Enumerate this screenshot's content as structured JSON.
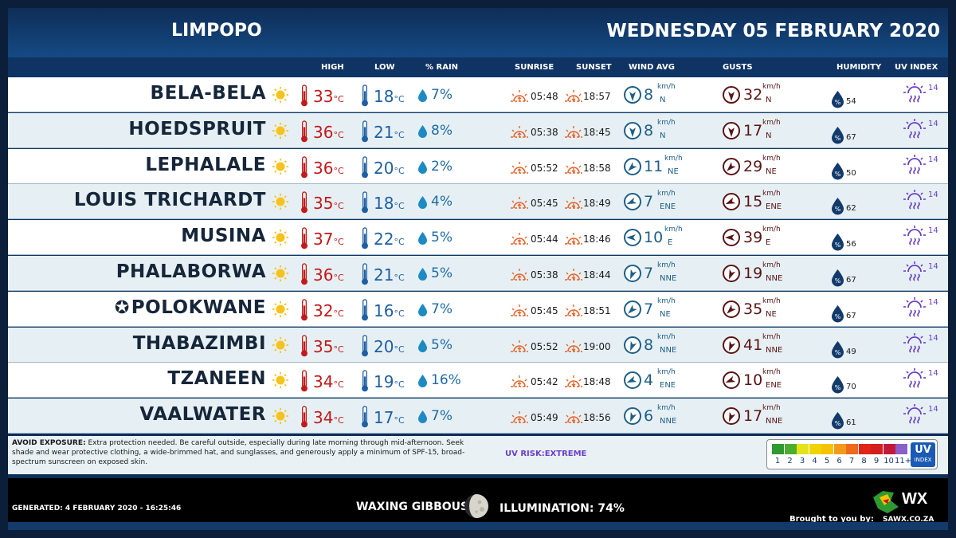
{
  "header": {
    "region": "LIMPOPO",
    "date": "WEDNESDAY 05 FEBRUARY 2020"
  },
  "columns": {
    "high": "HIGH",
    "low": "LOW",
    "rain": "% RAIN",
    "sunrise": "SUNRISE",
    "sunset": "SUNSET",
    "wind": "WIND AVG",
    "gusts": "GUSTS",
    "humidity": "HUMIDITY",
    "uv": "UV INDEX"
  },
  "units": {
    "temp": "°C",
    "speed": "km/h"
  },
  "colors": {
    "high": "#c21a1a",
    "low": "#1e5fa3",
    "rain": "#1e6aa6",
    "sun_orange": "#e8622a",
    "uv_purple": "#6a3fc7"
  },
  "rows": [
    {
      "city": "BELA-BELA",
      "capital": false,
      "high": "33",
      "low": "18",
      "rain": "7%",
      "sunrise": "05:48",
      "sunset": "18:57",
      "wind_speed": "8",
      "wind_dir": "N",
      "gust_speed": "32",
      "gust_dir": "N",
      "humidity": "54",
      "uv": "14",
      "wind_angle": 0,
      "gust_angle": 0
    },
    {
      "city": "HOEDSPRUIT",
      "capital": false,
      "high": "36",
      "low": "21",
      "rain": "8%",
      "sunrise": "05:38",
      "sunset": "18:45",
      "wind_speed": "8",
      "wind_dir": "N",
      "gust_speed": "17",
      "gust_dir": "N",
      "humidity": "67",
      "uv": "14",
      "wind_angle": 0,
      "gust_angle": 0
    },
    {
      "city": "LEPHALALE",
      "capital": false,
      "high": "36",
      "low": "20",
      "rain": "2%",
      "sunrise": "05:52",
      "sunset": "18:58",
      "wind_speed": "11",
      "wind_dir": "NE",
      "gust_speed": "29",
      "gust_dir": "NE",
      "humidity": "50",
      "uv": "14",
      "wind_angle": 45,
      "gust_angle": 45
    },
    {
      "city": "LOUIS TRICHARDT",
      "capital": false,
      "high": "35",
      "low": "18",
      "rain": "4%",
      "sunrise": "05:45",
      "sunset": "18:49",
      "wind_speed": "7",
      "wind_dir": "ENE",
      "gust_speed": "15",
      "gust_dir": "ENE",
      "humidity": "62",
      "uv": "14",
      "wind_angle": 67,
      "gust_angle": 67
    },
    {
      "city": "MUSINA",
      "capital": false,
      "high": "37",
      "low": "22",
      "rain": "5%",
      "sunrise": "05:44",
      "sunset": "18:46",
      "wind_speed": "10",
      "wind_dir": "E",
      "gust_speed": "39",
      "gust_dir": "E",
      "humidity": "56",
      "uv": "14",
      "wind_angle": 90,
      "gust_angle": 90
    },
    {
      "city": "PHALABORWA",
      "capital": false,
      "high": "36",
      "low": "21",
      "rain": "5%",
      "sunrise": "05:38",
      "sunset": "18:44",
      "wind_speed": "7",
      "wind_dir": "NNE",
      "gust_speed": "19",
      "gust_dir": "NNE",
      "humidity": "67",
      "uv": "14",
      "wind_angle": 22,
      "gust_angle": 22
    },
    {
      "city": "POLOKWANE",
      "capital": true,
      "high": "32",
      "low": "16",
      "rain": "7%",
      "sunrise": "05:45",
      "sunset": "18:51",
      "wind_speed": "7",
      "wind_dir": "NE",
      "gust_speed": "35",
      "gust_dir": "NE",
      "humidity": "67",
      "uv": "14",
      "wind_angle": 45,
      "gust_angle": 45
    },
    {
      "city": "THABAZIMBI",
      "capital": false,
      "high": "35",
      "low": "20",
      "rain": "5%",
      "sunrise": "05:52",
      "sunset": "19:00",
      "wind_speed": "8",
      "wind_dir": "NNE",
      "gust_speed": "41",
      "gust_dir": "NNE",
      "humidity": "49",
      "uv": "14",
      "wind_angle": 22,
      "gust_angle": 22
    },
    {
      "city": "TZANEEN",
      "capital": false,
      "high": "34",
      "low": "19",
      "rain": "16%",
      "sunrise": "05:42",
      "sunset": "18:48",
      "wind_speed": "4",
      "wind_dir": "ENE",
      "gust_speed": "10",
      "gust_dir": "ENE",
      "humidity": "70",
      "uv": "14",
      "wind_angle": 67,
      "gust_angle": 67
    },
    {
      "city": "VAALWATER",
      "capital": false,
      "high": "34",
      "low": "17",
      "rain": "7%",
      "sunrise": "05:49",
      "sunset": "18:56",
      "wind_speed": "6",
      "wind_dir": "NNE",
      "gust_speed": "17",
      "gust_dir": "NNE",
      "humidity": "61",
      "uv": "14",
      "wind_angle": 22,
      "gust_angle": 22
    }
  ],
  "footer": {
    "advice_label": "AVOID EXPOSURE:",
    "advice_text": "Extra protection needed. Be careful outside, especially during late morning through mid-afternoon. Seek shade and wear protective clothing, a wide-brimmed hat, and sunglasses, and generously apply a minimum of SPF-15, broad-spectrum sunscreen on exposed skin.",
    "uv_risk": "UV RISK:EXTREME",
    "uv_scale_labels": [
      "1",
      "2",
      "3",
      "4",
      "5",
      "6",
      "7",
      "8",
      "9",
      "10",
      "11+"
    ],
    "uv_scale_colors": [
      "#2f9a2f",
      "#4cae2e",
      "#e6e21a",
      "#f0d400",
      "#f5c400",
      "#f39a1a",
      "#ee6a1c",
      "#e2231a",
      "#d41f1f",
      "#c2183a",
      "#8a5fc7"
    ],
    "uv_badge_top": "UV",
    "uv_badge_bottom": "INDEX"
  },
  "bottom": {
    "generated": "GENERATED: 4 FEBRUARY 2020 - 16:25:46",
    "moon_phase": "WAXING GIBBOUS",
    "illumination": "ILLUMINATION: 74%",
    "brought_by": "Brought to you by:",
    "logo_text": "SAWX.CO.ZA",
    "logo_mark": "WX"
  }
}
